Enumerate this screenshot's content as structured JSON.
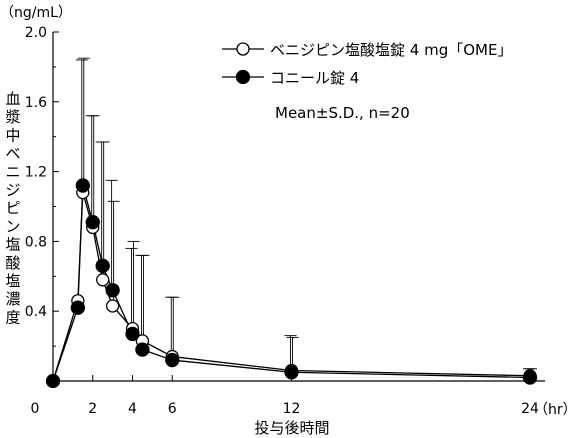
{
  "chart_data": {
    "type": "line",
    "title": "",
    "xlabel": "投与後時間",
    "x_unit": "（hr）",
    "ylabel": "血漿中ベニジピン塩酸塩濃度",
    "y_unit": "（ng/mL）",
    "xlim": [
      0,
      24.5
    ],
    "ylim": [
      0,
      2.0
    ],
    "x_ticks": [
      0,
      2,
      4,
      6,
      12,
      24
    ],
    "x_tick_labels": [
      "0",
      "2",
      "4",
      "6",
      "12",
      "24"
    ],
    "y_ticks": [
      0.4,
      0.8,
      1.2,
      1.6,
      2.0
    ],
    "y_tick_labels": [
      "0.4",
      "0.8",
      "1.2",
      "1.6",
      "2.0"
    ],
    "annotation": "Mean±S.D., n=20",
    "legend_position": "top-right",
    "series": [
      {
        "name": "ベニジピン塩酸塩錠 4 mg「OME」",
        "marker": "open-circle",
        "x": [
          0,
          1.25,
          1.5,
          2,
          2.5,
          3,
          4,
          4.5,
          6,
          12,
          24
        ],
        "y": [
          0,
          0.46,
          1.08,
          0.88,
          0.58,
          0.43,
          0.3,
          0.23,
          0.14,
          0.06,
          0.03
        ],
        "sd": [
          0,
          0.0,
          0.77,
          0.64,
          0.79,
          0.6,
          0.5,
          0.49,
          0.34,
          0.19,
          0.04
        ]
      },
      {
        "name": "コニール錠 4",
        "marker": "filled-circle",
        "x": [
          0,
          1.25,
          1.5,
          2,
          2.5,
          3,
          4,
          4.5,
          6,
          12,
          24
        ],
        "y": [
          0,
          0.42,
          1.12,
          0.91,
          0.66,
          0.52,
          0.27,
          0.18,
          0.12,
          0.05,
          0.02
        ],
        "sd": [
          0,
          0.0,
          0.72,
          0.61,
          0.71,
          0.63,
          0.49,
          0.54,
          0.36,
          0.21,
          0.05
        ]
      }
    ]
  }
}
